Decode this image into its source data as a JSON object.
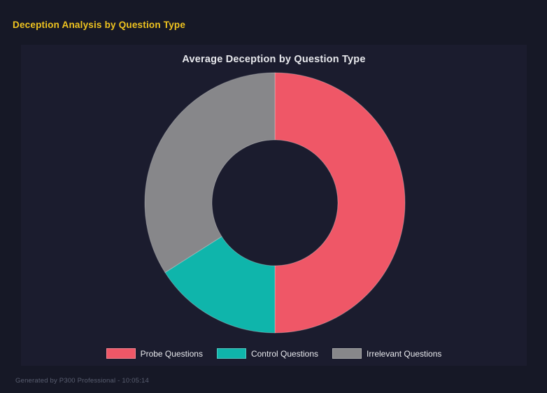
{
  "page": {
    "title": "Deception Analysis by Question Type",
    "footer": "Generated by P300 Professional - 10:05:14"
  },
  "colors": {
    "background": "#161826",
    "panel": "#1b1c2e",
    "accent_yellow": "#f0c41f",
    "probe_red": "#ef5767",
    "control_teal": "#0fb5ab",
    "irrelevant_gray": "#87878a"
  },
  "chart_data": {
    "type": "pie",
    "variant": "donut",
    "title": "Average Deception by Question Type",
    "categories": [
      "Probe Questions",
      "Control Questions",
      "Irrelevant Questions"
    ],
    "values_percent": [
      50,
      16,
      34
    ],
    "colors": [
      "#ef5767",
      "#0fb5ab",
      "#87878a"
    ],
    "start_angle_deg": 0,
    "direction": "clockwise",
    "cutout_ratio": 0.48,
    "legend_position": "bottom",
    "data_labels": "none"
  }
}
